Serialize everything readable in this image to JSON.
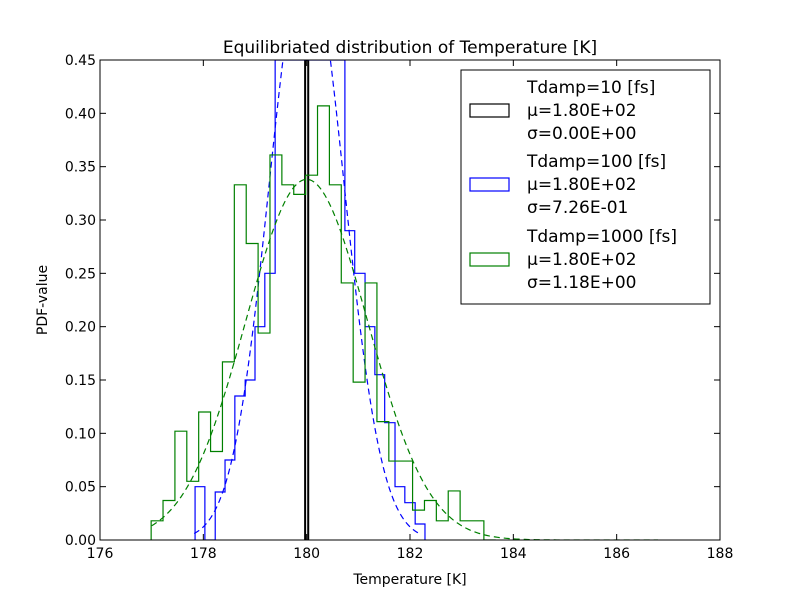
{
  "chart_data": {
    "type": "histogram",
    "title": "Equilibriated distribution of Temperature [K]",
    "xlabel": "Temperature [K]",
    "ylabel": "PDF-value",
    "xlim": [
      176,
      188
    ],
    "ylim": [
      0,
      0.45
    ],
    "xticks": [
      176,
      178,
      180,
      182,
      184,
      186,
      188
    ],
    "xtick_labels": [
      "176",
      "178",
      "180",
      "182",
      "184",
      "186",
      "188"
    ],
    "yticks": [
      0,
      0.05,
      0.1,
      0.15,
      0.2,
      0.25,
      0.3,
      0.35,
      0.4,
      0.45
    ],
    "ytick_labels": [
      "0.00",
      "0.05",
      "0.10",
      "0.15",
      "0.20",
      "0.25",
      "0.30",
      "0.35",
      "0.40",
      "0.45"
    ],
    "grid": false,
    "legend_position": "top-right",
    "series": [
      {
        "legend_lines": [
          "Tdamp=10 [fs]",
          "μ=1.80E+02",
          "σ=0.00E+00"
        ],
        "color": "#000000",
        "mean": 180.0,
        "std": 0.0,
        "hist_edges": [
          179.97,
          180.03
        ],
        "hist_values": [
          0.45
        ]
      },
      {
        "legend_lines": [
          "Tdamp=100 [fs]",
          "μ=1.80E+02",
          "σ=7.26E-01"
        ],
        "color": "#0000ff",
        "mean": 180.0,
        "std": 0.726,
        "hist_edges": [
          177.84,
          178.03,
          178.23,
          178.42,
          178.61,
          178.81,
          179.0,
          179.19,
          179.39,
          179.58,
          179.77,
          179.97,
          180.16,
          180.35,
          180.55,
          180.74,
          180.93,
          181.13,
          181.32,
          181.51,
          181.71,
          181.9,
          182.1,
          182.29
        ],
        "hist_values": [
          0.05,
          0.0,
          0.045,
          0.075,
          0.135,
          0.15,
          0.2,
          0.25,
          0.45,
          0.45,
          0.45,
          0.45,
          0.45,
          0.45,
          0.45,
          0.29,
          0.25,
          0.2,
          0.155,
          0.11,
          0.05,
          0.035,
          0.015
        ]
      },
      {
        "legend_lines": [
          "Tdamp=1000 [fs]",
          "μ=1.80E+02",
          "σ=1.18E+00"
        ],
        "color": "#008000",
        "mean": 180.0,
        "std": 1.18,
        "hist_edges": [
          176.99,
          177.22,
          177.45,
          177.68,
          177.91,
          178.14,
          178.37,
          178.6,
          178.83,
          179.06,
          179.29,
          179.52,
          179.75,
          179.98,
          180.21,
          180.44,
          180.67,
          180.9,
          181.13,
          181.36,
          181.59,
          181.82,
          182.05,
          182.28,
          182.51,
          182.74,
          182.97,
          183.2,
          183.43,
          183.66
        ],
        "hist_values": [
          0.018,
          0.037,
          0.102,
          0.055,
          0.12,
          0.083,
          0.167,
          0.333,
          0.278,
          0.194,
          0.361,
          0.333,
          0.324,
          0.342,
          0.407,
          0.333,
          0.241,
          0.148,
          0.241,
          0.111,
          0.074,
          0.074,
          0.028,
          0.037,
          0.018,
          0.046,
          0.018,
          0.018,
          0.0
        ]
      }
    ]
  }
}
